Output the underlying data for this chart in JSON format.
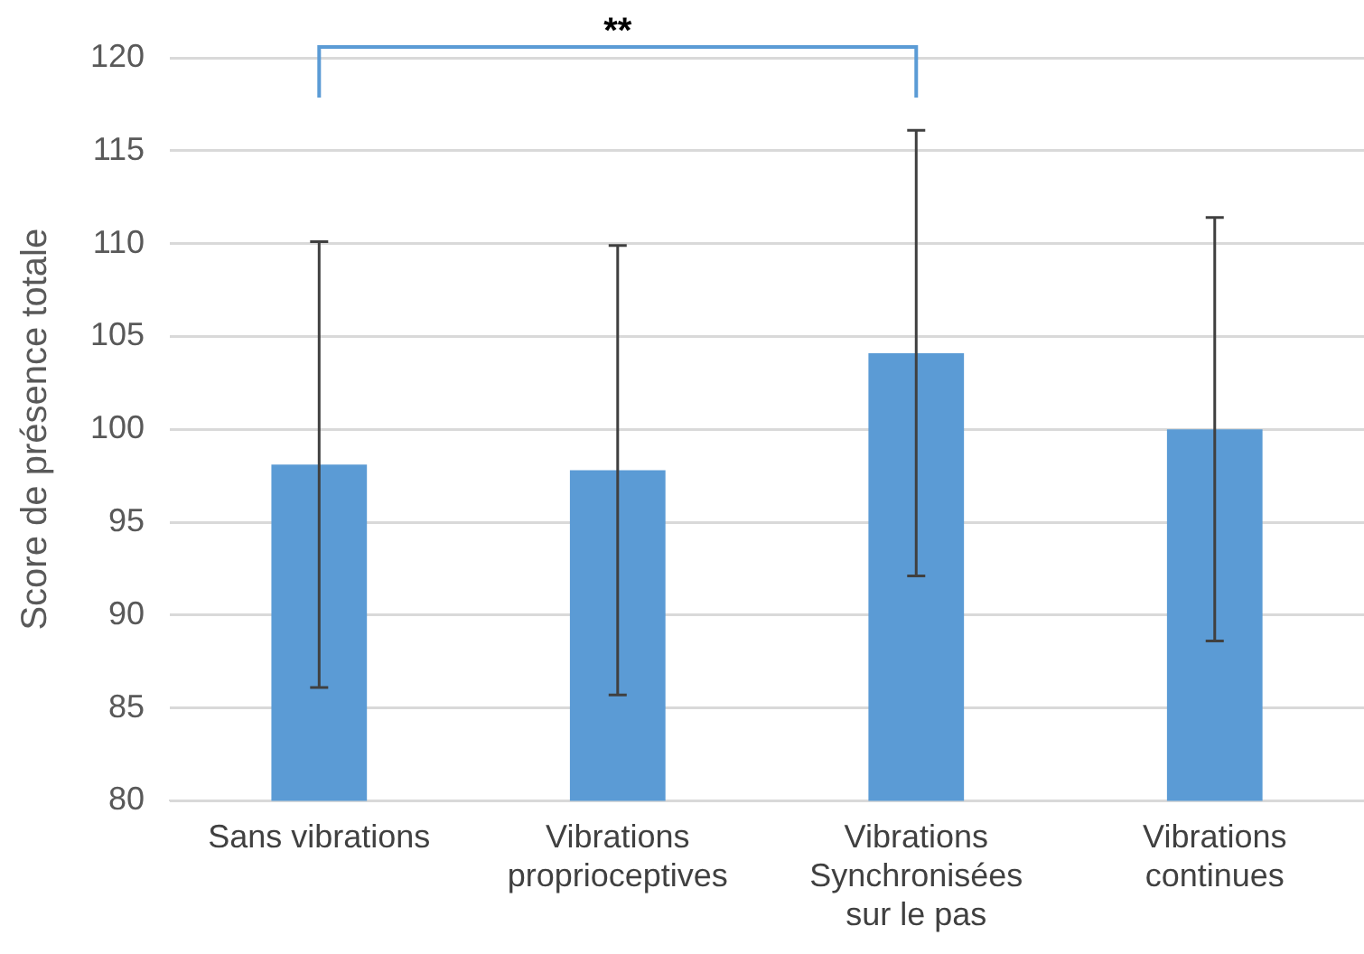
{
  "chart_data": {
    "type": "bar",
    "ylabel": "Score de présence totale",
    "categories": [
      "Sans vibrations",
      "Vibrations proprioceptives",
      "Vibrations Synchronisées sur le pas",
      "Vibrations continues"
    ],
    "values": [
      98.1,
      97.8,
      104.1,
      100
    ],
    "errors": [
      12,
      12.1,
      12,
      11.4
    ],
    "color": "#5b9bd5",
    "ylim": [
      80,
      120
    ],
    "yticks": [
      80,
      85,
      90,
      95,
      100,
      105,
      110,
      115,
      120
    ],
    "grid": "y",
    "legend": false,
    "annotations": [
      "**"
    ]
  }
}
